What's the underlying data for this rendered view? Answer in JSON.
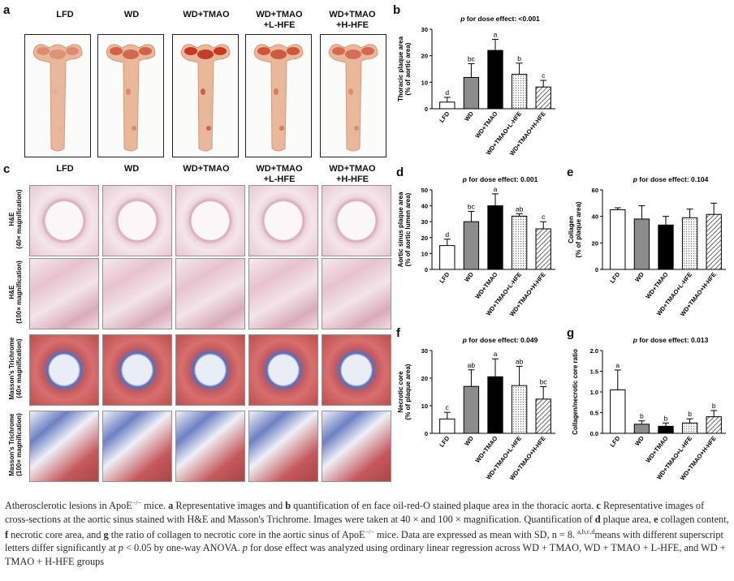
{
  "panel_letters": {
    "a": "a",
    "b": "b",
    "c": "c",
    "d": "d",
    "e": "e",
    "f": "f",
    "g": "g"
  },
  "groups": [
    "LFD",
    "WD",
    "WD+TMAO",
    "WD+TMAO\n+L-HFE",
    "WD+TMAO\n+H-HFE"
  ],
  "panel_c_rows": [
    {
      "line1": "H&E",
      "line2": "(40× magnification)"
    },
    {
      "line1": "H&E",
      "line2": "(100× magnification)"
    },
    {
      "line1": "Masson's Trichrome",
      "line2": "(40× magnification)"
    },
    {
      "line1": "Masson's Trichrome",
      "line2": "(100× magnification)"
    }
  ],
  "colors": {
    "white": "#ffffff",
    "gray": "#8c8c8c",
    "black": "#000000",
    "dotted": "#cfcfcf",
    "hatched": "#bdbdbd"
  },
  "chart_data": [
    {
      "id": "b",
      "type": "bar",
      "title": "p for dose effect: <0.001",
      "ylabel": "Thoracic plaque area\n(% of aortic area)",
      "ylim": [
        0,
        30
      ],
      "yticks": [
        0,
        10,
        20,
        30
      ],
      "categories": [
        "LFD",
        "WD",
        "WD+TMAO",
        "WD+TMAO+L-HFE",
        "WD+TMAO+H-HFE"
      ],
      "values": [
        2.5,
        11.8,
        22.0,
        13.0,
        8.2
      ],
      "errors": [
        1.8,
        5.2,
        4.2,
        4.2,
        2.5
      ],
      "letters": [
        "d",
        "bc",
        "a",
        "b",
        "c"
      ]
    },
    {
      "id": "d",
      "type": "bar",
      "title": "p for dose effect: 0.001",
      "ylabel": "Aortic sinus plaque area\n(% of aortic lumen area)",
      "ylim": [
        0,
        50
      ],
      "yticks": [
        0,
        10,
        20,
        30,
        40,
        50
      ],
      "categories": [
        "LFD",
        "WD",
        "WD+TMAO",
        "WD+TMAO+L-HFE",
        "WD+TMAO+H-HFE"
      ],
      "values": [
        15.0,
        30.0,
        40.0,
        33.5,
        25.5
      ],
      "errors": [
        4.0,
        6.5,
        7.5,
        1.5,
        4.5
      ],
      "letters": [
        "d",
        "bc",
        "a",
        "ab",
        "c"
      ]
    },
    {
      "id": "e",
      "type": "bar",
      "title": "p for dose effect: 0.104",
      "ylabel": "Collagen\n(% of plaque area)",
      "ylim": [
        0,
        60
      ],
      "yticks": [
        0,
        20,
        40,
        60
      ],
      "categories": [
        "LFD",
        "WD",
        "WD+TMAO",
        "WD+TMAO+L-HFE",
        "WD+TMAO+H-HFE"
      ],
      "values": [
        45.0,
        38.0,
        33.5,
        39.0,
        41.5
      ],
      "errors": [
        1.5,
        10.0,
        6.5,
        6.5,
        8.5
      ],
      "letters": [
        "",
        "",
        "",
        "",
        ""
      ]
    },
    {
      "id": "f",
      "type": "bar",
      "title": "p for dose effect: 0.049",
      "ylabel": "Necrotic core\n(% of plaque area)",
      "ylim": [
        0,
        30
      ],
      "yticks": [
        0,
        10,
        20,
        30
      ],
      "categories": [
        "LFD",
        "WD",
        "WD+TMAO",
        "WD+TMAO+L-HFE",
        "WD+TMAO+H-HFE"
      ],
      "values": [
        5.2,
        17.0,
        20.5,
        17.3,
        12.4
      ],
      "errors": [
        2.4,
        6.0,
        6.5,
        7.0,
        4.5
      ],
      "letters": [
        "c",
        "ab",
        "a",
        "ab",
        "bc"
      ]
    },
    {
      "id": "g",
      "type": "bar",
      "title": "p for dose effect: 0.013",
      "ylabel": "Collagen/necrotic core ratio",
      "ylim": [
        0,
        2.0
      ],
      "yticks": [
        0.0,
        0.5,
        1.0,
        1.5,
        2.0
      ],
      "categories": [
        "LFD",
        "WD",
        "WD+TMAO",
        "WD+TMAO+L-HFE",
        "WD+TMAO+H-HFE"
      ],
      "values": [
        1.05,
        0.22,
        0.17,
        0.25,
        0.4
      ],
      "errors": [
        0.48,
        0.08,
        0.08,
        0.1,
        0.15
      ],
      "letters": [
        "a",
        "b",
        "b",
        "b",
        "b"
      ]
    }
  ],
  "caption": {
    "p1": "Atherosclerotic lesions in ApoE",
    "p1sup": "−/−",
    "p2": " mice. ",
    "a": "a",
    "p3": " Representative images and ",
    "b": "b",
    "p4": " quantification of en face oil-red-O stained plaque area in the thoracic aorta. ",
    "c": "c",
    "p5": " Representative images of cross-sections at the aortic sinus stained with H&E and Masson's Trichrome. Images were taken at 40 × and 100 × magnification. Quantification of ",
    "d": "d",
    "p6": " plaque area, ",
    "e": "e",
    "p7": " collagen content, ",
    "f": "f",
    "p8": " necrotic core area, and ",
    "g": "g",
    "p9": " the ratio of collagen to necrotic core in the aortic sinus of ApoE",
    "p9sup": "−/−",
    "p10": " mice. Data are expressed as mean with SD, n = 8. ",
    "sup2": "a,b,c,d",
    "p11": "means with different superscript letters differ significantly at ",
    "pi": "p",
    "p12": " < 0.05 by one-way ANOVA. ",
    "pi2": "p",
    "p13": " for dose effect was analyzed using ordinary linear regression across WD + TMAO, WD + TMAO + L-HFE, and WD + TMAO + H-HFE groups"
  }
}
